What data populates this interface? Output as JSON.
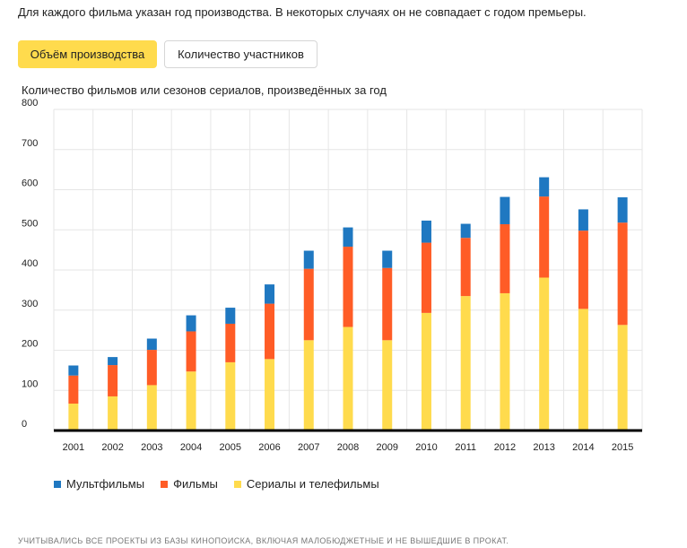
{
  "intro_text": "Для каждого фильма указан год производства. В некоторых случаях он не совпадает с годом премьеры.",
  "tabs": [
    {
      "label": "Объём производства",
      "active": true
    },
    {
      "label": "Количество участников",
      "active": false
    }
  ],
  "chart_data": {
    "type": "bar",
    "stacked": true,
    "title": "Количество фильмов или сезонов сериалов, произведённых за год",
    "xlabel": "",
    "ylabel": "",
    "ylim": [
      0,
      800
    ],
    "yticks": [
      0,
      100,
      200,
      300,
      400,
      500,
      600,
      700,
      800
    ],
    "grid": true,
    "legend_position": "bottom-left",
    "categories": [
      "2001",
      "2002",
      "2003",
      "2004",
      "2005",
      "2006",
      "2007",
      "2008",
      "2009",
      "2010",
      "2011",
      "2012",
      "2013",
      "2014",
      "2015"
    ],
    "series": [
      {
        "name": "Сериалы и телефильмы",
        "color": "#ffdb4d",
        "values": [
          67,
          85,
          113,
          147,
          170,
          178,
          225,
          258,
          225,
          293,
          335,
          342,
          381,
          303,
          263
        ]
      },
      {
        "name": "Фильмы",
        "color": "#ff5c26",
        "values": [
          70,
          78,
          88,
          100,
          96,
          138,
          178,
          200,
          180,
          175,
          145,
          172,
          202,
          195,
          255
        ]
      },
      {
        "name": "Мультфильмы",
        "color": "#1f78c1",
        "values": [
          25,
          20,
          28,
          40,
          40,
          48,
          45,
          48,
          43,
          55,
          35,
          68,
          48,
          53,
          63
        ]
      }
    ]
  },
  "legend": [
    {
      "label": "Мультфильмы",
      "color": "#1f78c1"
    },
    {
      "label": "Фильмы",
      "color": "#ff5c26"
    },
    {
      "label": "Сериалы и телефильмы",
      "color": "#ffdb4d"
    }
  ],
  "footnote": "УЧИТЫВАЛИСЬ ВСЕ ПРОЕКТЫ ИЗ БАЗЫ КИНОПОИСКА, ВКЛЮЧАЯ МАЛОБЮДЖЕТНЫЕ И НЕ ВЫШЕДШИЕ В ПРОКАТ."
}
